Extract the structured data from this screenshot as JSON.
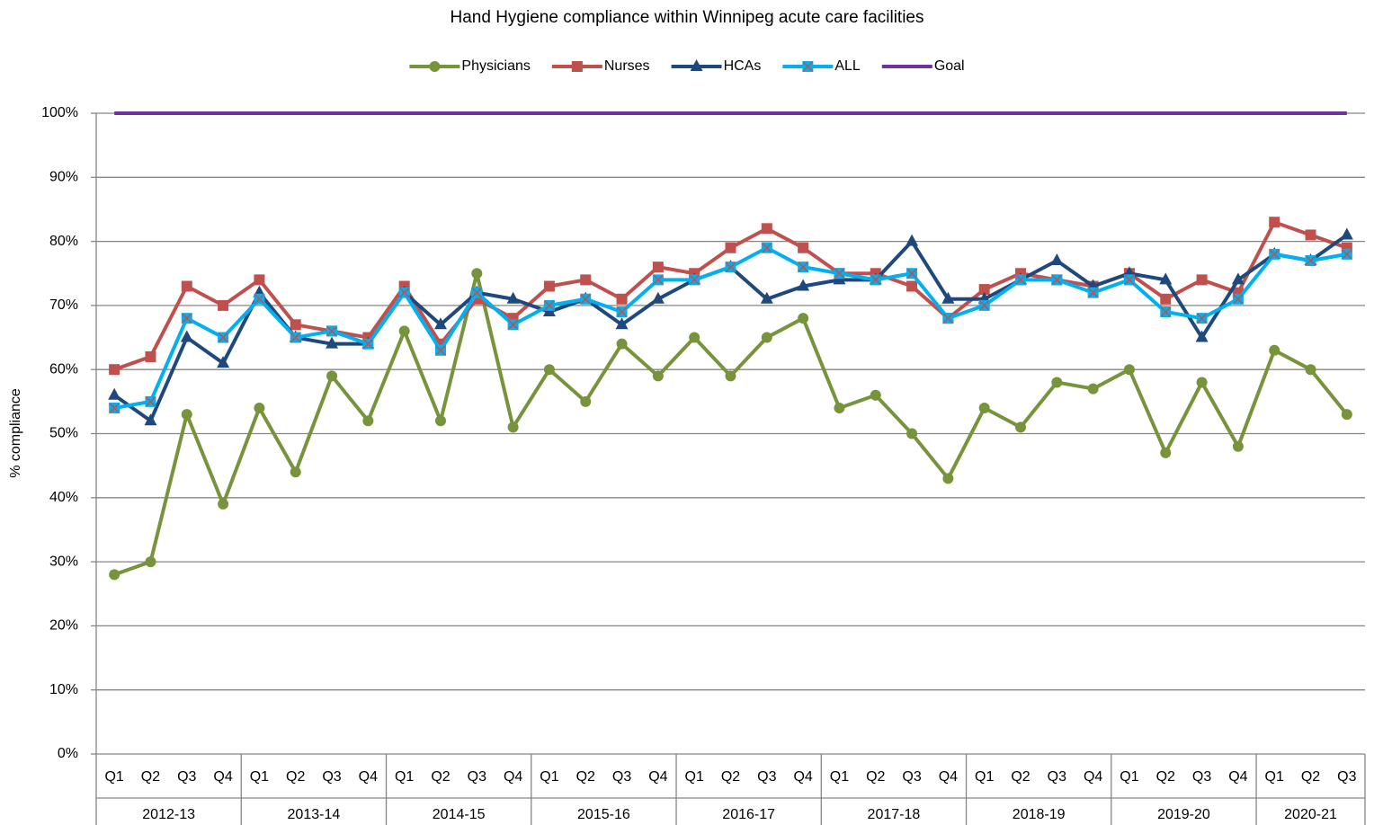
{
  "chart_data": {
    "type": "line",
    "title": "Hand Hygiene compliance within Winnipeg acute care facilities",
    "ylabel": "% compliance",
    "categories": [
      "Q1",
      "Q2",
      "Q3",
      "Q4",
      "Q1",
      "Q2",
      "Q3",
      "Q4",
      "Q1",
      "Q2",
      "Q3",
      "Q4",
      "Q1",
      "Q2",
      "Q3",
      "Q4",
      "Q1",
      "Q2",
      "Q3",
      "Q4",
      "Q1",
      "Q2",
      "Q3",
      "Q4",
      "Q1",
      "Q2",
      "Q3",
      "Q4",
      "Q1",
      "Q2",
      "Q3",
      "Q4",
      "Q1",
      "Q2",
      "Q3"
    ],
    "groups": [
      "2012-13",
      "2013-14",
      "2014-15",
      "2015-16",
      "2016-17",
      "2017-18",
      "2018-19",
      "2019-20",
      "2020-21"
    ],
    "series": [
      {
        "name": "Physicians",
        "color": "#77933c",
        "marker": "circle",
        "values": [
          28,
          30,
          53,
          39,
          54,
          44,
          59,
          52,
          66,
          52,
          75,
          51,
          60,
          55,
          64,
          59,
          65,
          59,
          65,
          68,
          54,
          56,
          50,
          43,
          54,
          51,
          58,
          57,
          60,
          47,
          58,
          48,
          63,
          60,
          53
        ]
      },
      {
        "name": "Nurses",
        "color": "#c0504d",
        "marker": "square",
        "values": [
          60,
          62,
          73,
          70,
          74,
          67,
          66,
          65,
          73,
          64,
          71,
          68,
          73,
          74,
          71,
          76,
          75,
          79,
          82,
          79,
          75,
          75,
          73,
          68,
          72.5,
          75,
          74,
          73,
          75,
          71,
          74,
          72,
          83,
          81,
          79
        ]
      },
      {
        "name": "HCAs",
        "color": "#1f497d",
        "marker": "triangle",
        "values": [
          56,
          52,
          65,
          61,
          72,
          65,
          64,
          64,
          72,
          67,
          72,
          71,
          69,
          71,
          67,
          71,
          74,
          76,
          71,
          73,
          74,
          74,
          80,
          71,
          71,
          74,
          77,
          73,
          75,
          74,
          65,
          74,
          78,
          77,
          81
        ]
      },
      {
        "name": "ALL",
        "color": "#00b0f0",
        "marker": "xsquare",
        "values": [
          54,
          55,
          68,
          65,
          71,
          65,
          66,
          64,
          72,
          63,
          72,
          67,
          70,
          71,
          69,
          74,
          74,
          76,
          79,
          76,
          75,
          74,
          75,
          68,
          70,
          74,
          74,
          72,
          74,
          69,
          68,
          71,
          78,
          77,
          78
        ]
      },
      {
        "name": "Goal",
        "color": "#7030a0",
        "marker": "none",
        "values": [
          100,
          100,
          100,
          100,
          100,
          100,
          100,
          100,
          100,
          100,
          100,
          100,
          100,
          100,
          100,
          100,
          100,
          100,
          100,
          100,
          100,
          100,
          100,
          100,
          100,
          100,
          100,
          100,
          100,
          100,
          100,
          100,
          100,
          100,
          100
        ]
      }
    ],
    "ylim": [
      0,
      100
    ],
    "yticks": [
      {
        "value": 0,
        "label": "0%"
      },
      {
        "value": 10,
        "label": "10%"
      },
      {
        "value": 20,
        "label": "20%"
      },
      {
        "value": 30,
        "label": "30%"
      },
      {
        "value": 40,
        "label": "40%"
      },
      {
        "value": 50,
        "label": "50%"
      },
      {
        "value": 60,
        "label": "60%"
      },
      {
        "value": 70,
        "label": "70%"
      },
      {
        "value": 80,
        "label": "80%"
      },
      {
        "value": 90,
        "label": "90%"
      },
      {
        "value": 100,
        "label": "100%"
      }
    ],
    "grid": true,
    "legend": "top"
  }
}
